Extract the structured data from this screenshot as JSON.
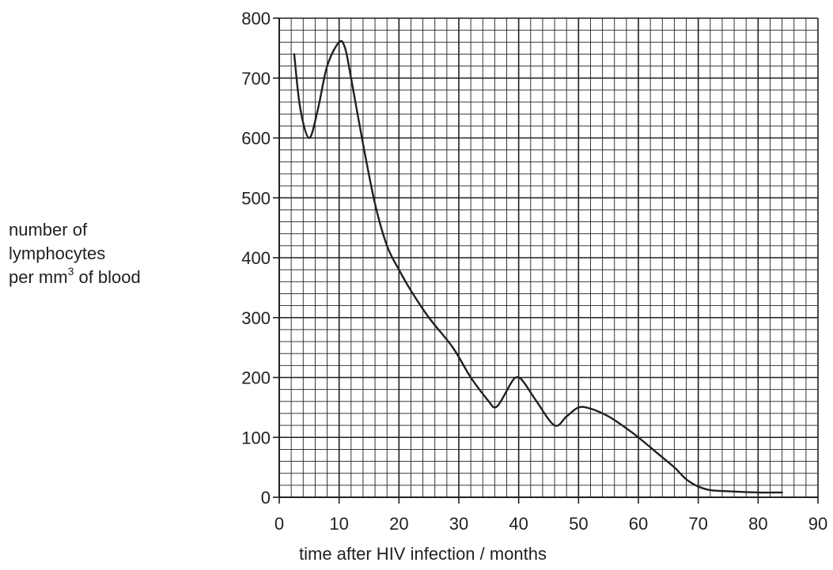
{
  "chart_data": {
    "type": "line",
    "xlabel": "time after HIV infection / months",
    "ylabel": {
      "line1": "number of",
      "line2": "lymphocytes",
      "line3_prefix": "per mm",
      "line3_sup": "3",
      "line3_suffix": " of blood"
    },
    "xlim": [
      0,
      90
    ],
    "ylim": [
      0,
      800
    ],
    "x_ticks": [
      "0",
      "10",
      "20",
      "30",
      "40",
      "50",
      "60",
      "70",
      "80",
      "90"
    ],
    "y_ticks": [
      "0",
      "100",
      "200",
      "300",
      "400",
      "500",
      "600",
      "700",
      "800"
    ],
    "grid": true,
    "x_minor_step": 2,
    "y_minor_step": 20,
    "series": [
      {
        "x": [
          2.5,
          3.5,
          5,
          6.5,
          8,
          10,
          11,
          12,
          14,
          16,
          18,
          20,
          22,
          25,
          29,
          32,
          35,
          36,
          37,
          39,
          40,
          41,
          43,
          46,
          48,
          50,
          52,
          55,
          58,
          60,
          63,
          66,
          68,
          70,
          72,
          75,
          80,
          84
        ],
        "values": [
          740,
          650,
          600,
          650,
          720,
          760,
          750,
          700,
          590,
          490,
          420,
          380,
          345,
          300,
          250,
          200,
          160,
          150,
          160,
          195,
          200,
          190,
          160,
          120,
          135,
          150,
          148,
          135,
          115,
          100,
          75,
          50,
          30,
          18,
          12,
          10,
          8,
          8
        ]
      }
    ],
    "colors": {
      "line": "#231f20",
      "grid": "#231f20",
      "background": "#ffffff"
    }
  }
}
